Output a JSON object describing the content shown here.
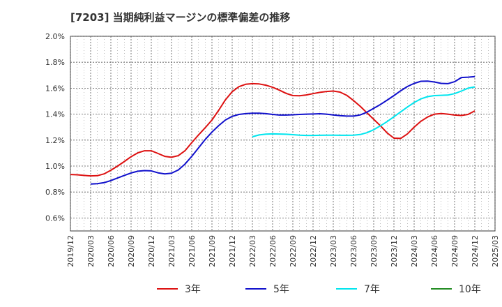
{
  "chart_data": {
    "type": "line",
    "title": "[7203]  当期純利益マージンの標準偏差の推移",
    "xlabel": "",
    "ylabel": "",
    "ylim": [
      0.5,
      2.0
    ],
    "yticks": [
      "2.0%",
      "1.8%",
      "1.6%",
      "1.4%",
      "1.2%",
      "1.0%",
      "0.8%",
      "0.6%"
    ],
    "ytick_values": [
      2.0,
      1.8,
      1.6,
      1.4,
      1.2,
      1.0,
      0.8,
      0.6
    ],
    "xticks": [
      "2019/12",
      "2020/03",
      "2020/06",
      "2020/09",
      "2020/12",
      "2021/03",
      "2021/06",
      "2021/09",
      "2021/12",
      "2022/03",
      "2022/06",
      "2022/09",
      "2022/12",
      "2023/03",
      "2023/06",
      "2023/09",
      "2023/12",
      "2024/03",
      "2024/06",
      "2024/09",
      "2024/12",
      "2025/03"
    ],
    "grid": true,
    "legend_position": "bottom",
    "series": [
      {
        "name": "3年",
        "color": "#dd1111",
        "x": [
          "2019/12",
          "2020/01",
          "2020/02",
          "2020/03",
          "2020/04",
          "2020/05",
          "2020/06",
          "2020/07",
          "2020/08",
          "2020/09",
          "2020/10",
          "2020/11",
          "2020/12",
          "2021/01",
          "2021/02",
          "2021/03",
          "2021/04",
          "2021/05",
          "2021/06",
          "2021/07",
          "2021/08",
          "2021/09",
          "2021/10",
          "2021/11",
          "2021/12",
          "2022/01",
          "2022/02",
          "2022/03",
          "2022/04",
          "2022/05",
          "2022/06",
          "2022/07",
          "2022/08",
          "2022/09",
          "2022/10",
          "2022/11",
          "2022/12",
          "2023/01",
          "2023/02",
          "2023/03",
          "2023/04",
          "2023/05",
          "2023/06",
          "2023/07",
          "2023/08",
          "2023/09",
          "2023/10",
          "2023/11",
          "2023/12",
          "2024/01",
          "2024/02",
          "2024/03",
          "2024/04",
          "2024/05",
          "2024/06",
          "2024/07",
          "2024/08",
          "2024/09",
          "2024/10",
          "2024/11",
          "2024/12"
        ],
        "values": [
          0.935,
          0.933,
          0.928,
          0.924,
          0.926,
          0.94,
          0.968,
          1.0,
          1.035,
          1.072,
          1.102,
          1.118,
          1.118,
          1.097,
          1.075,
          1.068,
          1.08,
          1.118,
          1.18,
          1.24,
          1.295,
          1.355,
          1.43,
          1.51,
          1.573,
          1.612,
          1.63,
          1.635,
          1.633,
          1.623,
          1.607,
          1.585,
          1.56,
          1.543,
          1.542,
          1.548,
          1.558,
          1.568,
          1.575,
          1.578,
          1.57,
          1.545,
          1.505,
          1.46,
          1.41,
          1.36,
          1.31,
          1.255,
          1.215,
          1.213,
          1.248,
          1.3,
          1.345,
          1.378,
          1.4,
          1.405,
          1.4,
          1.393,
          1.39,
          1.398,
          1.425
        ]
      },
      {
        "name": "5年",
        "color": "#1111cc",
        "x": [
          "2020/03",
          "2020/04",
          "2020/05",
          "2020/06",
          "2020/07",
          "2020/08",
          "2020/09",
          "2020/10",
          "2020/11",
          "2020/12",
          "2021/01",
          "2021/02",
          "2021/03",
          "2021/04",
          "2021/05",
          "2021/06",
          "2021/07",
          "2021/08",
          "2021/09",
          "2021/10",
          "2021/11",
          "2021/12",
          "2022/01",
          "2022/02",
          "2022/03",
          "2022/04",
          "2022/05",
          "2022/06",
          "2022/07",
          "2022/08",
          "2022/09",
          "2022/10",
          "2022/11",
          "2022/12",
          "2023/01",
          "2023/02",
          "2023/03",
          "2023/04",
          "2023/05",
          "2023/06",
          "2023/07",
          "2023/08",
          "2023/09",
          "2023/10",
          "2023/11",
          "2023/12",
          "2024/01",
          "2024/02",
          "2024/03",
          "2024/04",
          "2024/05",
          "2024/06",
          "2024/07",
          "2024/08",
          "2024/09",
          "2024/10",
          "2024/11",
          "2024/12"
        ],
        "values": [
          0.862,
          0.864,
          0.872,
          0.888,
          0.908,
          0.928,
          0.947,
          0.96,
          0.965,
          0.963,
          0.948,
          0.94,
          0.945,
          0.97,
          1.015,
          1.075,
          1.14,
          1.205,
          1.262,
          1.312,
          1.355,
          1.383,
          1.398,
          1.404,
          1.407,
          1.407,
          1.404,
          1.398,
          1.393,
          1.393,
          1.395,
          1.398,
          1.4,
          1.401,
          1.403,
          1.4,
          1.394,
          1.388,
          1.385,
          1.385,
          1.394,
          1.415,
          1.445,
          1.475,
          1.508,
          1.543,
          1.58,
          1.613,
          1.637,
          1.653,
          1.655,
          1.648,
          1.637,
          1.635,
          1.65,
          1.682,
          1.685,
          1.69
        ]
      },
      {
        "name": "7年",
        "color": "#00e5ee",
        "x": [
          "2022/03",
          "2022/04",
          "2022/05",
          "2022/06",
          "2022/07",
          "2022/08",
          "2022/09",
          "2022/10",
          "2022/11",
          "2022/12",
          "2023/01",
          "2023/02",
          "2023/03",
          "2023/04",
          "2023/05",
          "2023/06",
          "2023/07",
          "2023/08",
          "2023/09",
          "2023/10",
          "2023/11",
          "2023/12",
          "2024/01",
          "2024/02",
          "2024/03",
          "2024/04",
          "2024/05",
          "2024/06",
          "2024/07",
          "2024/08",
          "2024/09",
          "2024/10",
          "2024/11",
          "2024/12"
        ],
        "values": [
          1.226,
          1.24,
          1.246,
          1.248,
          1.247,
          1.245,
          1.242,
          1.238,
          1.236,
          1.236,
          1.237,
          1.238,
          1.238,
          1.237,
          1.237,
          1.238,
          1.243,
          1.257,
          1.28,
          1.31,
          1.343,
          1.38,
          1.418,
          1.455,
          1.49,
          1.518,
          1.535,
          1.543,
          1.545,
          1.547,
          1.558,
          1.578,
          1.6,
          1.61
        ]
      },
      {
        "name": "10年",
        "color": "#228b22",
        "x": [],
        "values": []
      }
    ]
  }
}
